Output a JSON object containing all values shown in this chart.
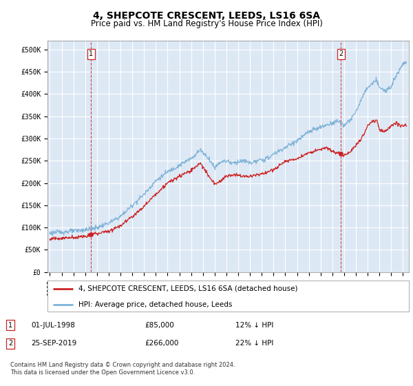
{
  "title": "4, SHEPCOTE CRESCENT, LEEDS, LS16 6SA",
  "subtitle": "Price paid vs. HM Land Registry's House Price Index (HPI)",
  "ylabel_ticks": [
    "£0",
    "£50K",
    "£100K",
    "£150K",
    "£200K",
    "£250K",
    "£300K",
    "£350K",
    "£400K",
    "£450K",
    "£500K"
  ],
  "ytick_values": [
    0,
    50000,
    100000,
    150000,
    200000,
    250000,
    300000,
    350000,
    400000,
    450000,
    500000
  ],
  "xlim_start": 1994.8,
  "xlim_end": 2025.5,
  "ylim": [
    0,
    520000
  ],
  "hpi_color": "#7fb3d8",
  "property_color": "#cc2222",
  "dashed_color": "#cc3333",
  "background_color": "#dde8f5",
  "grid_color": "#ffffff",
  "legend_label_property": "4, SHEPCOTE CRESCENT, LEEDS, LS16 6SA (detached house)",
  "legend_label_hpi": "HPI: Average price, detached house, Leeds",
  "transaction1_date": "01-JUL-1998",
  "transaction1_price": "£85,000",
  "transaction1_hpi": "12% ↓ HPI",
  "transaction1_x": 1998.5,
  "transaction1_y": 85000,
  "transaction2_date": "25-SEP-2019",
  "transaction2_price": "£266,000",
  "transaction2_hpi": "22% ↓ HPI",
  "transaction2_x": 2019.73,
  "transaction2_y": 266000,
  "footnote": "Contains HM Land Registry data © Crown copyright and database right 2024.\nThis data is licensed under the Open Government Licence v3.0.",
  "title_fontsize": 10,
  "subtitle_fontsize": 8.5,
  "tick_fontsize": 7,
  "legend_fontsize": 7.5
}
